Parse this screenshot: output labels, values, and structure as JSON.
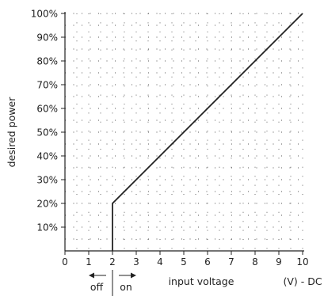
{
  "chart_data": {
    "type": "line",
    "title": "",
    "xlabel": "input voltage",
    "ylabel": "desired power",
    "unit_label": "(V) - DC",
    "xlim": [
      0,
      10
    ],
    "ylim": [
      0,
      100
    ],
    "x_ticks": [
      0,
      1,
      2,
      3,
      4,
      5,
      6,
      7,
      8,
      9,
      10
    ],
    "y_ticks": [
      10,
      20,
      30,
      40,
      50,
      60,
      70,
      80,
      90,
      100
    ],
    "y_tick_labels": [
      "10%",
      "20%",
      "30%",
      "40%",
      "50%",
      "60%",
      "70%",
      "80%",
      "90%",
      "100%"
    ],
    "grid": "dotted",
    "series": [
      {
        "x": [
          2,
          2,
          10
        ],
        "y": [
          0,
          20,
          100
        ]
      }
    ],
    "annotations": {
      "off": "off",
      "on": "on",
      "threshold_x": 2
    },
    "line_color": "#222222"
  }
}
